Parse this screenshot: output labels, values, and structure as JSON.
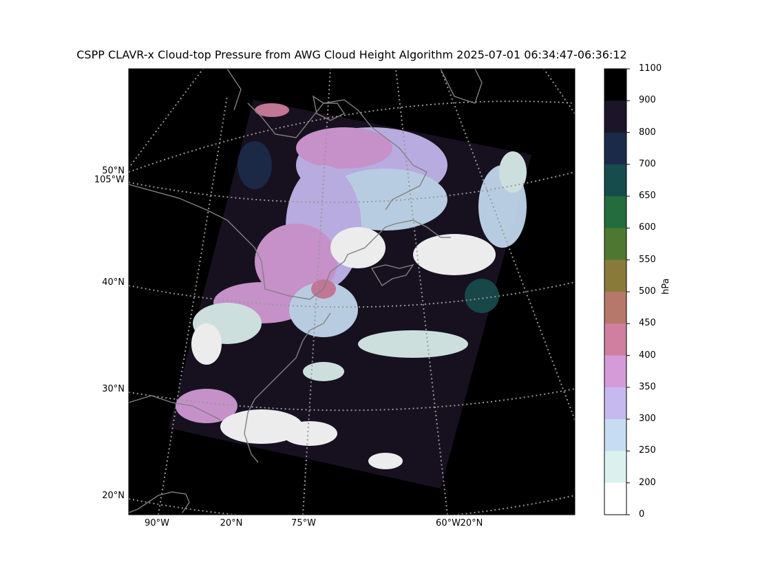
{
  "title": "CSPP CLAVR-x Cloud-top Pressure from AWG Cloud Height Algorithm 2025-07-01 06:34:47-06:36:12",
  "map": {
    "lat_labels": [
      "50°N",
      "105°W",
      "40°N",
      "30°N",
      "20°N"
    ],
    "lon_labels": [
      "90°W",
      "20°N",
      "75°W",
      "60°W",
      "20°N"
    ],
    "background_color": "#000000",
    "coastline_color": "#808080",
    "gridline_color": "#999999"
  },
  "colorbar": {
    "unit": "hPa",
    "levels": [
      "1100",
      "900",
      "800",
      "700",
      "650",
      "600",
      "550",
      "500",
      "450",
      "400",
      "350",
      "300",
      "250",
      "200",
      "0"
    ],
    "colors": [
      "#000000",
      "#1c1428",
      "#1c2a4a",
      "#174c4c",
      "#246b3e",
      "#4e7832",
      "#8a7a3a",
      "#b5786a",
      "#d07fa0",
      "#d59bd8",
      "#c5b9f0",
      "#c6dcf2",
      "#dcf1ee",
      "#ffffff"
    ]
  }
}
